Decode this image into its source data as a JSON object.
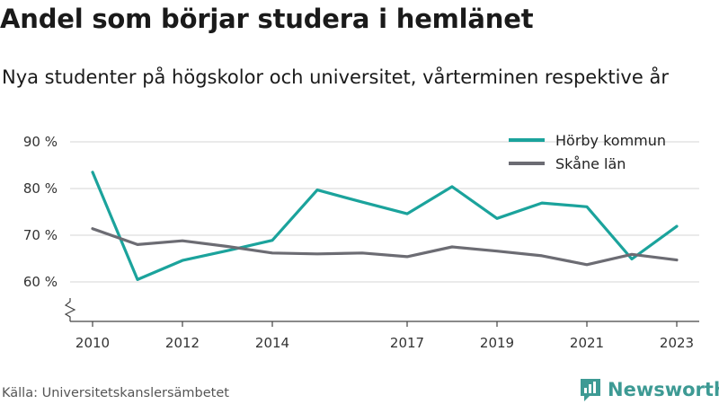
{
  "title": "Andel som börjar studera i hemlänet",
  "subtitle": "Nya studenter på högskolor och universitet, vårterminen respektive år",
  "source": "Källa: Universitetskanslersämbetet",
  "brand": "Newsworthy",
  "colors": {
    "series_1": "#1ba39c",
    "series_2": "#6c6c73",
    "grid": "#dddddd",
    "brand": "#3d9a94"
  },
  "chart_data": {
    "type": "line",
    "title": "",
    "xlabel": "",
    "ylabel": "",
    "ylim": [
      60,
      90
    ],
    "y_ticks": [
      90,
      80,
      70,
      60
    ],
    "y_tick_labels": [
      "90 %",
      "80 %",
      "70 %",
      "60 %"
    ],
    "x_ticks": [
      2010,
      2012,
      2014,
      2017,
      2019,
      2021,
      2023
    ],
    "x_tick_labels": [
      "2010",
      "2012",
      "2014",
      "2017",
      "2019",
      "2021",
      "2023"
    ],
    "x": [
      2010,
      2011,
      2012,
      2013,
      2014,
      2015,
      2016,
      2017,
      2018,
      2019,
      2020,
      2021,
      2022,
      2023
    ],
    "axis_break": true,
    "grid": true,
    "legend_position": "top-right",
    "series": [
      {
        "name": "Hörby kommun",
        "values": [
          83.5,
          60.5,
          64.6,
          66.7,
          68.9,
          79.7,
          77.1,
          74.6,
          80.4,
          73.6,
          76.9,
          76.1,
          64.9,
          71.9
        ]
      },
      {
        "name": "Skåne län",
        "values": [
          71.4,
          68.0,
          68.8,
          67.6,
          66.2,
          66.0,
          66.2,
          65.4,
          67.5,
          66.6,
          65.6,
          63.7,
          65.9,
          64.7
        ]
      }
    ]
  }
}
